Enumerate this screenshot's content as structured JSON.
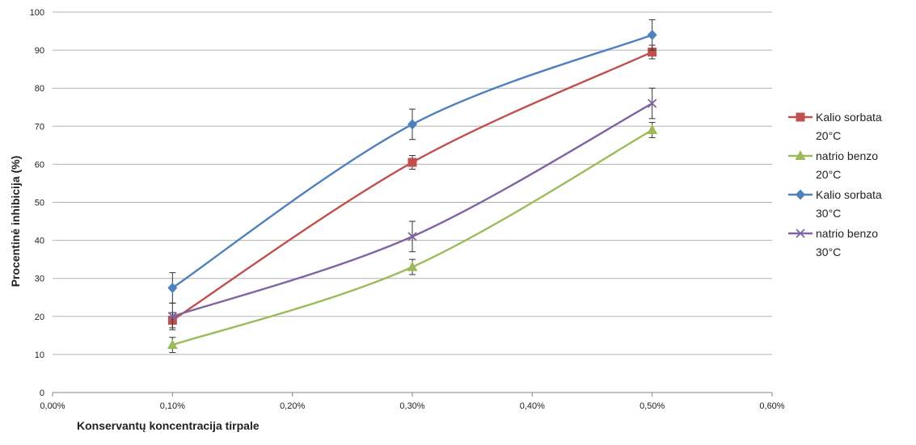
{
  "chart_data": {
    "type": "line",
    "title": "",
    "xlabel": "Konservantų koncentracija tirpale",
    "ylabel": "Procentinė inhibicija (%)",
    "xlim": [
      0,
      0.6
    ],
    "ylim": [
      0,
      100
    ],
    "x_ticks": [
      "0,00%",
      "0,10%",
      "0,20%",
      "0,30%",
      "0,40%",
      "0,50%",
      "0,60%"
    ],
    "y_ticks": [
      "0",
      "10",
      "20",
      "30",
      "40",
      "50",
      "60",
      "70",
      "80",
      "90",
      "100"
    ],
    "grid": "horizontal",
    "legend_position": "right",
    "x": [
      0.1,
      0.3,
      0.5
    ],
    "series": [
      {
        "name": [
          "Kalio sorbata",
          "20°C"
        ],
        "marker": "square",
        "color": "#c0504d",
        "values": [
          19,
          60.5,
          89.5
        ],
        "errors": [
          2,
          1.8,
          1.8
        ]
      },
      {
        "name": [
          "natrio benzo",
          "20°C"
        ],
        "marker": "triangle",
        "color": "#9bbb59",
        "values": [
          12.5,
          33,
          69
        ],
        "errors": [
          2,
          2,
          2
        ]
      },
      {
        "name": [
          "Kalio sorbata",
          "30°C"
        ],
        "marker": "diamond",
        "color": "#4f81bd",
        "values": [
          27.5,
          70.5,
          94
        ],
        "errors": [
          4,
          4,
          4
        ]
      },
      {
        "name": [
          "natrio benzo",
          "30°C"
        ],
        "marker": "cross",
        "color": "#8064a2",
        "values": [
          20,
          41,
          76
        ],
        "errors": [
          3.5,
          4,
          4
        ]
      }
    ]
  }
}
